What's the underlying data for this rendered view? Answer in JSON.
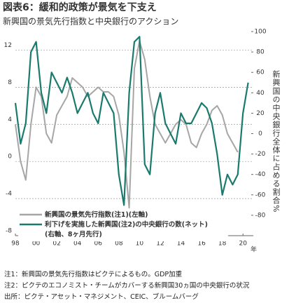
{
  "chart_data": {
    "type": "line",
    "title": "図表6：緩和的政策が景気を下支え",
    "subtitle": "新興国の景気先行指数と中央銀行のアクション",
    "xlabel": "年",
    "y2label": "新興国の中央銀行全体に占める割合%",
    "x": [
      1998,
      1998.5,
      1999,
      1999.5,
      2000,
      2000.5,
      2001,
      2001.5,
      2002,
      2002.5,
      2003,
      2003.5,
      2004,
      2004.5,
      2005,
      2005.5,
      2006,
      2006.5,
      2007,
      2007.5,
      2008,
      2008.5,
      2009,
      2009.5,
      2010,
      2010.5,
      2011,
      2011.5,
      2012,
      2012.5,
      2013,
      2013.5,
      2014,
      2014.5,
      2015,
      2015.5,
      2016,
      2016.5,
      2017,
      2017.5,
      2018,
      2018.5,
      2019,
      2019.5,
      2020,
      2020.5
    ],
    "series": [
      {
        "name": "新興国の景気先行指数(注1)(左軸)",
        "color": "#a6a6a6",
        "values": [
          4,
          0,
          -2,
          4,
          8,
          7,
          3,
          2,
          5,
          6,
          7,
          9,
          8.5,
          8,
          7,
          7.5,
          8,
          7.5,
          7.5,
          7,
          5,
          1,
          -5,
          10,
          13,
          11,
          7,
          4,
          3,
          2,
          3,
          4,
          4.5,
          4,
          2,
          1.5,
          3,
          4,
          5.5,
          6,
          5,
          3,
          2,
          1,
          null,
          null
        ]
      },
      {
        "name": "利下げを実施した新興国(注2)の中央銀行の数(ネット)\n(右軸、8ヶ月先行)",
        "color": "#1a7a6e",
        "axis": "y2",
        "values": [
          30,
          -10,
          10,
          80,
          90,
          40,
          20,
          60,
          50,
          40,
          55,
          40,
          20,
          30,
          40,
          20,
          10,
          40,
          30,
          20,
          -40,
          -70,
          40,
          90,
          95,
          -30,
          -40,
          20,
          40,
          10,
          0,
          -10,
          20,
          10,
          10,
          20,
          30,
          25,
          10,
          -20,
          -60,
          -40,
          -50,
          -40,
          20,
          50
        ]
      }
    ],
    "xlim": [
      1998,
      2021
    ],
    "xticks": [
      {
        "value": 1998,
        "label": "98"
      },
      {
        "value": 2000,
        "label": "00"
      },
      {
        "value": 2002,
        "label": "02"
      },
      {
        "value": 2004,
        "label": "04"
      },
      {
        "value": 2006,
        "label": "06"
      },
      {
        "value": 2008,
        "label": "08"
      },
      {
        "value": 2010,
        "label": "10"
      },
      {
        "value": 2012,
        "label": "12"
      },
      {
        "value": 2014,
        "label": "14"
      },
      {
        "value": 2016,
        "label": "16"
      },
      {
        "value": 2018,
        "label": "18"
      },
      {
        "value": 2020,
        "label": "20"
      }
    ],
    "ylim": [
      -8,
      14
    ],
    "yticks": [
      -8,
      -4,
      0,
      4,
      8,
      12
    ],
    "y2lim": [
      -100,
      100
    ],
    "y2ticks": [
      -80,
      -60,
      -40,
      -20,
      0,
      20,
      40,
      60,
      80,
      100
    ],
    "grid": true,
    "legend": "lower left"
  },
  "notes": [
    "注1：新興国の景気先行指数はピクテによるもの。GDP加重",
    "注2：ピクテのエコノミスト・チームがカバーする新興国30ヵ国の中央銀行の状況",
    "出所：ピクテ・アセット・マネジメント、CEIC、ブルームバーグ"
  ]
}
